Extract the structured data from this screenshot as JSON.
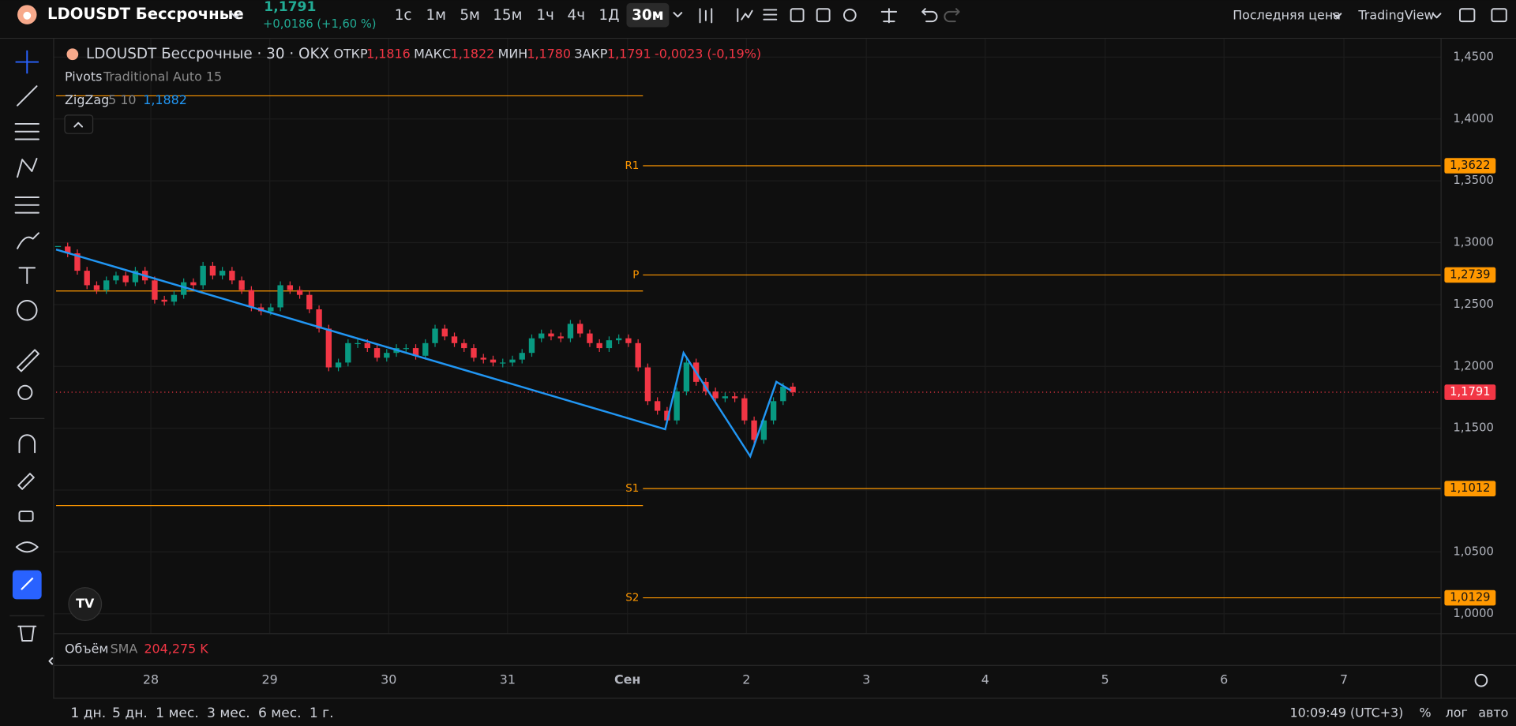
{
  "header": {
    "symbol": "LDOUSDT Бессрочные",
    "price": "1,1791",
    "change": "+0,0186 (+1,60 %)",
    "intervals": [
      "1с",
      "1м",
      "5м",
      "15м",
      "1ч",
      "4ч",
      "1Д",
      "30м"
    ],
    "price_source": "Последняя цена",
    "layout_name": "TradingView"
  },
  "legend": {
    "title": "LDOUSDT Бессрочные · 30 · OKX",
    "open_label": "ОТКР",
    "open": "1,1816",
    "high_label": "МАКС",
    "high": "1,1822",
    "low_label": "МИН",
    "low": "1,1780",
    "close_label": "ЗАКР",
    "close": "1,1791",
    "change": "-0,0023 (-0,19%)",
    "pivots_name": "Pivots",
    "pivots_params": "Traditional Auto 15",
    "zigzag_name": "ZigZag",
    "zigzag_params": "5 10",
    "zigzag_value": "1,1882"
  },
  "chart_data": {
    "type": "candlestick",
    "closes": [
      1.2969,
      1.2914,
      1.2773,
      1.2656,
      1.2617,
      1.2695,
      1.2734,
      1.268,
      1.2773,
      1.2695,
      1.2539,
      1.2523,
      1.2578,
      1.268,
      1.2656,
      1.2813,
      1.2734,
      1.2773,
      1.2695,
      1.2617,
      1.2477,
      1.2445,
      1.2477,
      1.2656,
      1.2617,
      1.2578,
      1.2461,
      1.2305,
      1.1992,
      1.2031,
      1.2188,
      1.2188,
      1.2148,
      1.207,
      1.2109,
      1.2148,
      1.2148,
      1.2086,
      1.2188,
      1.2305,
      1.2242,
      1.2188,
      1.2148,
      1.207,
      1.2055,
      1.2031,
      1.2031,
      1.2055,
      1.2109,
      1.2227,
      1.2266,
      1.2242,
      1.2227,
      1.2344,
      1.2266,
      1.2188,
      1.2148,
      1.2211,
      1.2227,
      1.2188,
      1.1992,
      1.1719,
      1.1641,
      1.1563,
      1.1797,
      1.2031,
      1.1875,
      1.1797,
      1.1742,
      1.1758,
      1.1742,
      1.1563,
      1.1406,
      1.1563,
      1.1719,
      1.1836,
      1.1791
    ],
    "up_color": "#089981",
    "down_color": "#f23645",
    "ylim": [
      0.9844,
      1.4648
    ],
    "yticks": [
      {
        "value": 1.45,
        "label": "1,4500"
      },
      {
        "value": 1.4,
        "label": "1,4000"
      },
      {
        "value": 1.35,
        "label": "1,3500"
      },
      {
        "value": 1.3,
        "label": "1,3000"
      },
      {
        "value": 1.25,
        "label": "1,2500"
      },
      {
        "value": 1.2,
        "label": "1,2000"
      },
      {
        "value": 1.15,
        "label": "1,1500"
      },
      {
        "value": 1.1,
        "label": "1,1000"
      },
      {
        "value": 1.05,
        "label": "1,0500"
      },
      {
        "value": 1.0,
        "label": "1,0000"
      }
    ],
    "xlabels": [
      "28",
      "29",
      "30",
      "31",
      "Сен",
      "2",
      "3",
      "4",
      "5",
      "6",
      "7"
    ],
    "grid": true,
    "pivots": [
      {
        "name": "R1",
        "value": 1.3622,
        "label": "1,3622"
      },
      {
        "name": "P",
        "value": 1.2739,
        "label": "1,2739"
      },
      {
        "name": "S1",
        "value": 1.1012,
        "label": "1,1012"
      },
      {
        "name": "S2",
        "value": 1.0129,
        "label": "1,0129"
      }
    ],
    "pivot_color": "#ff9800",
    "zigzag": {
      "color": "#2196f3",
      "values": [
        1.2945,
        1.1492,
        1.2109,
        1.1273,
        1.1875,
        1.1805
      ]
    },
    "last_price": {
      "value": 1.1791,
      "label": "1,1791",
      "color": "#f23645"
    }
  },
  "volume": {
    "name": "Объём",
    "ma": "SMA",
    "value": "204,275 K"
  },
  "footer": {
    "ranges": [
      "1 дн.",
      "5 дн.",
      "1 мес.",
      "3 мес.",
      "6 мес.",
      "1 г."
    ],
    "time": "10:09:49 (UTC+3)",
    "percent": "%",
    "log": "лог",
    "auto": "авто"
  }
}
